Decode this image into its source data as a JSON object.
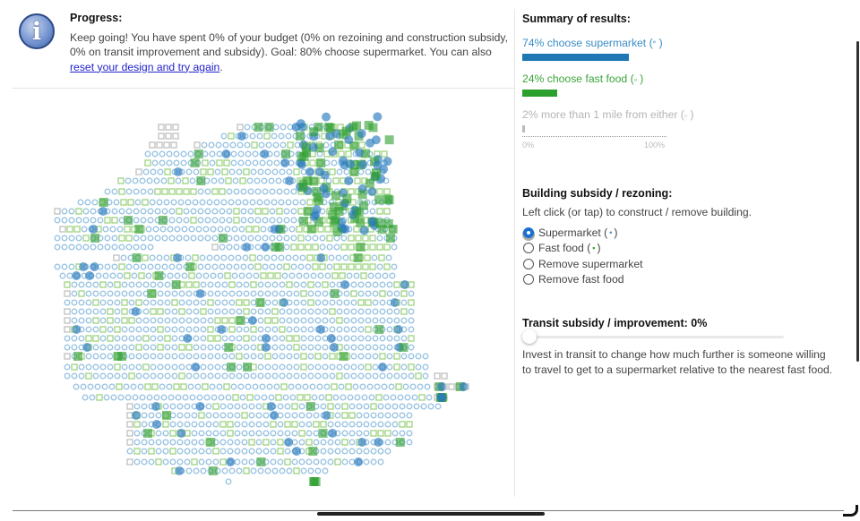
{
  "progress": {
    "title": "Progress:",
    "text": "Keep going! You have spent 0% of your budget (0% on rezoining and construction subsidy, 0% on transit improvement and subsidy). Goal: 80% choose supermarket. You can also ",
    "link": "reset your design and try again",
    "tail": "."
  },
  "summary": {
    "title": "Summary of results:",
    "results": [
      {
        "label": "74% choose supermarket (",
        "marker": "°",
        "close": " )",
        "value": 74,
        "color": "#1f77b4",
        "text_color": "#3a8cc6"
      },
      {
        "label": "24% choose fast food (",
        "marker": "▫",
        "close": " )",
        "value": 24,
        "color": "#2ca02c",
        "text_color": "#3aa53a"
      },
      {
        "label": "2% more than 1 mile from either (",
        "marker": "▫",
        "close": " )",
        "value": 2,
        "color": "#bbbbbb",
        "text_color": "#b5b5b5"
      }
    ],
    "axis_min": "0%",
    "axis_max": "100%"
  },
  "building": {
    "title": "Building subsidy / rezoning:",
    "instruction": "Left click (or tap) to construct / remove building.",
    "options": [
      {
        "label": "Supermarket ( ",
        "marker": "•",
        "close": " )",
        "selected": true,
        "marker_color": "#3a8cc6"
      },
      {
        "label": "Fast food ( ",
        "marker": "▪",
        "close": " )",
        "selected": false,
        "marker_color": "#3aa53a"
      },
      {
        "label": "Remove supermarket",
        "selected": false
      },
      {
        "label": "Remove fast food",
        "selected": false
      }
    ]
  },
  "transit": {
    "title": "Transit subsidy / improvement: 0%",
    "value": 0,
    "description": "Invest in transit to change how much further is someone willing to travel to get to a supermarket relative to the nearest fast food."
  },
  "map_colors": {
    "supermarket_household": "#9cc5e3",
    "fastfood_household": "#a6d78a",
    "far_household": "#c4c4c4",
    "supermarket": "#2b7bbf",
    "fast_food": "#2e9e2e"
  }
}
